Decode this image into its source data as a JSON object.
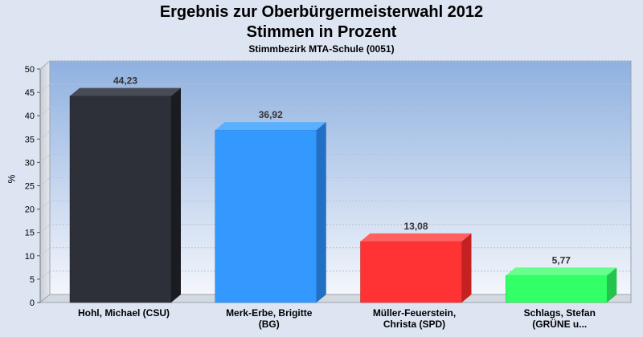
{
  "chart_data": {
    "type": "bar",
    "title": "Ergebnis zur Oberbürgermeisterwahl 2012",
    "subtitle_line": "Stimmen in Prozent",
    "subtitle": "Stimmbezirk MTA-Schule (0051)",
    "ylabel": "%",
    "xlabel": "",
    "ylim": [
      0,
      50
    ],
    "yticks": [
      0,
      5,
      10,
      15,
      20,
      25,
      30,
      35,
      40,
      45,
      50
    ],
    "grid": true,
    "legend": "none",
    "categories": [
      [
        "Hohl, Michael (CSU)"
      ],
      [
        "Merk-Erbe, Brigitte",
        "(BG)"
      ],
      [
        "Müller-Feuerstein,",
        "Christa (SPD)"
      ],
      [
        "Schlags, Stefan",
        "(GRÜNE u..."
      ]
    ],
    "values": [
      44.23,
      36.92,
      13.08,
      5.77
    ],
    "value_labels": [
      "44,23",
      "36,92",
      "13,08",
      "5,77"
    ],
    "colors": [
      "#2d3038",
      "#3399ff",
      "#ff3333",
      "#33ff66"
    ],
    "colors_side": [
      "#1a1c21",
      "#2270c4",
      "#c42222",
      "#22c44b"
    ],
    "colors_top": [
      "#474b55",
      "#5ab0ff",
      "#ff6060",
      "#66ff8d"
    ]
  }
}
